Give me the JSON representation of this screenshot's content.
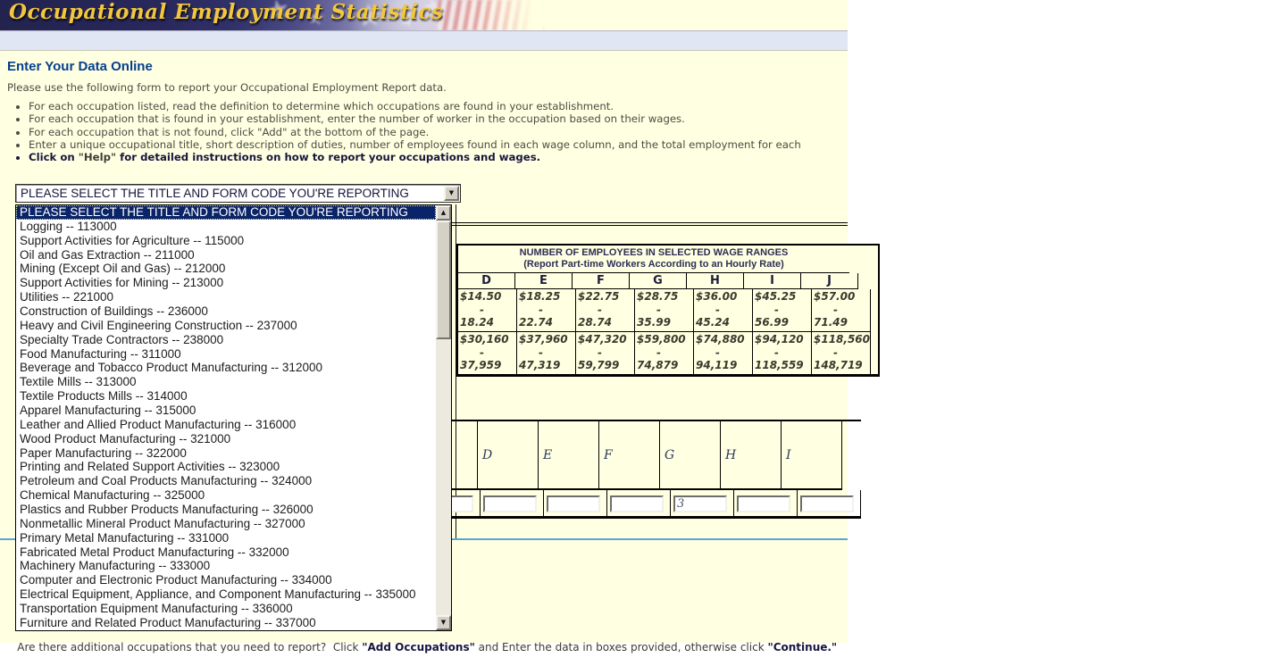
{
  "header": {
    "title": "Occupational Employment Statistics"
  },
  "page": {
    "heading": "Enter Your Data Online",
    "intro": "Please use the following form to report your Occupational Employment Report data.",
    "bullets": [
      {
        "pre": "For each occupation listed, read the definition to determine which occupations are found in your establishment.",
        "bold": "",
        "post": ""
      },
      {
        "pre": "For each occupation that is found in your establishment, enter the number of worker in the occupation based on their wages.",
        "bold": "",
        "post": ""
      },
      {
        "pre": "For each occupation that is not found, click \"Add\" at the bottom of the page.",
        "bold": "",
        "post": ""
      },
      {
        "pre": "Enter a unique occupational title, short description of duties, number of employees found in each wage column, and the total employment for each",
        "bold": "",
        "post": ""
      },
      {
        "pre": "Click on ",
        "bold": "\"Help\"",
        "post": " for detailed instructions on how to report your occupations and wages."
      }
    ]
  },
  "occupation_select": {
    "value": "PLEASE SELECT THE TITLE AND FORM CODE YOU'RE REPORTING",
    "options": [
      {
        "label": "PLEASE SELECT THE TITLE AND FORM CODE YOU'RE REPORTING",
        "selected": true
      },
      {
        "label": "Logging -- 113000"
      },
      {
        "label": "Support Activities for Agriculture -- 115000"
      },
      {
        "label": "Oil and Gas Extraction -- 211000"
      },
      {
        "label": "Mining (Except Oil and Gas) -- 212000"
      },
      {
        "label": "Support Activities for Mining -- 213000"
      },
      {
        "label": "Utilities -- 221000"
      },
      {
        "label": "Construction of Buildings -- 236000"
      },
      {
        "label": "Heavy and Civil Engineering Construction -- 237000"
      },
      {
        "label": "Specialty Trade Contractors -- 238000"
      },
      {
        "label": "Food Manufacturing -- 311000"
      },
      {
        "label": "Beverage and Tobacco Product Manufacturing -- 312000"
      },
      {
        "label": "Textile Mills -- 313000"
      },
      {
        "label": "Textile Products Mills -- 314000"
      },
      {
        "label": "Apparel Manufacturing -- 315000"
      },
      {
        "label": "Leather and Allied Product Manufacturing -- 316000"
      },
      {
        "label": "Wood Product Manufacturing -- 321000"
      },
      {
        "label": "Paper Manufacturing -- 322000"
      },
      {
        "label": "Printing and Related Support Activities -- 323000"
      },
      {
        "label": "Petroleum and Coal Products Manufacturing -- 324000"
      },
      {
        "label": "Chemical Manufacturing -- 325000"
      },
      {
        "label": "Plastics and Rubber Products Manufacturing -- 326000"
      },
      {
        "label": "Nonmetallic Mineral Product Manufacturing -- 327000"
      },
      {
        "label": "Primary Metal Manufacturing -- 331000"
      },
      {
        "label": "Fabricated Metal Product Manufacturing -- 332000"
      },
      {
        "label": "Machinery Manufacturing -- 333000"
      },
      {
        "label": "Computer and Electronic Product Manufacturing -- 334000"
      },
      {
        "label": "Electrical Equipment, Appliance, and Component Manufacturing -- 335000"
      },
      {
        "label": "Transportation Equipment Manufacturing -- 336000"
      },
      {
        "label": "Furniture and Related Product Manufacturing -- 337000"
      }
    ]
  },
  "wage_table": {
    "title_line1": "NUMBER OF EMPLOYEES IN SELECTED WAGE RANGES",
    "title_line2": "(Report Part-time Workers According to an Hourly Rate)",
    "dash": "-",
    "columns": [
      {
        "letter": "D",
        "hourly_low": "$14.50",
        "hourly_high": "18.24",
        "annual_low": "$30,160",
        "annual_high": "37,959"
      },
      {
        "letter": "E",
        "hourly_low": "$18.25",
        "hourly_high": "22.74",
        "annual_low": "$37,960",
        "annual_high": "47,319"
      },
      {
        "letter": "F",
        "hourly_low": "$22.75",
        "hourly_high": "28.74",
        "annual_low": "$47,320",
        "annual_high": "59,799"
      },
      {
        "letter": "G",
        "hourly_low": "$28.75",
        "hourly_high": "35.99",
        "annual_low": "$59,800",
        "annual_high": "74,879"
      },
      {
        "letter": "H",
        "hourly_low": "$36.00",
        "hourly_high": "45.24",
        "annual_low": "$74,880",
        "annual_high": "94,119"
      },
      {
        "letter": "I",
        "hourly_low": "$45.25",
        "hourly_high": "56.99",
        "annual_low": "$94,120",
        "annual_high": "118,559"
      },
      {
        "letter": "J",
        "hourly_low": "$57.00",
        "hourly_high": "71.49",
        "annual_low": "$118,560",
        "annual_high": "148,719"
      }
    ]
  },
  "entry_row": {
    "columns": [
      {
        "letter": "",
        "value": ""
      },
      {
        "letter": "D",
        "value": ""
      },
      {
        "letter": "E",
        "value": ""
      },
      {
        "letter": "F",
        "value": ""
      },
      {
        "letter": "G",
        "value": "3"
      },
      {
        "letter": "H",
        "value": ""
      },
      {
        "letter": "I",
        "value": ""
      }
    ]
  },
  "footer": {
    "segments": [
      {
        "text": "Are there additional occupations that you need to report?  Click ",
        "bold": false
      },
      {
        "text": "\"Add Occupations\"",
        "bold": true
      },
      {
        "text": " and Enter the data in boxes provided, otherwise click ",
        "bold": false
      },
      {
        "text": "\"Continue.\"",
        "bold": true
      }
    ]
  },
  "icons": {
    "dropdown_arrow": "▼",
    "scroll_up": "▲",
    "scroll_down": "▼",
    "flag_star": "★"
  },
  "colors": {
    "masthead_navy": "#28285C",
    "title_gold": "#F2C63D",
    "body_background": "#FFFFE1",
    "subheader_blue": "#E0E6F3",
    "selection_blue": "#0A246A",
    "divider_blue": "#58A7D3"
  }
}
